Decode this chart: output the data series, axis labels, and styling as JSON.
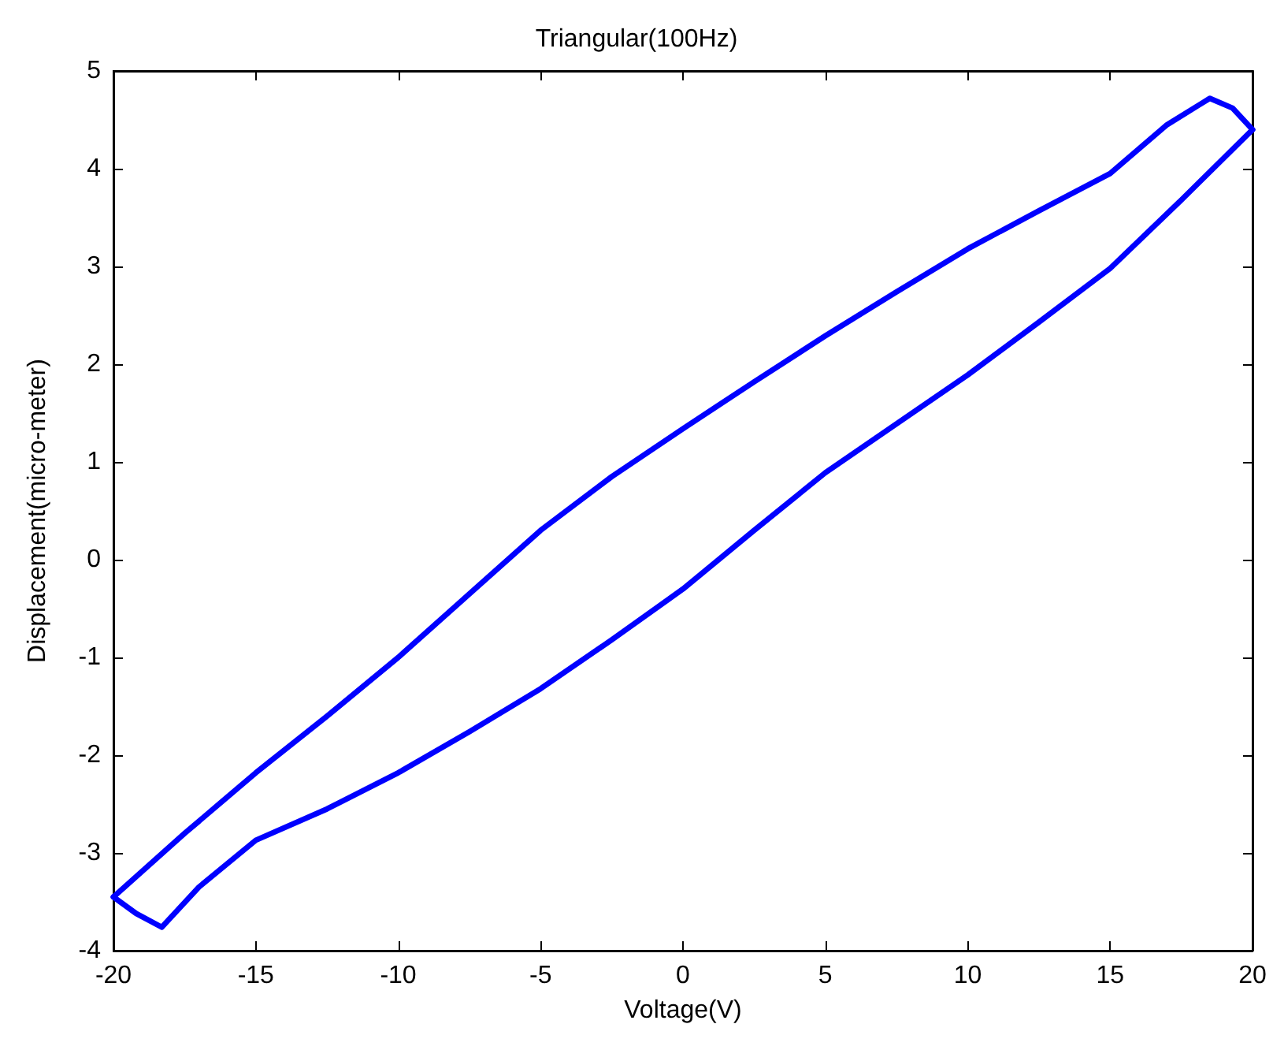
{
  "chart_data": {
    "type": "line",
    "title": "Triangular(100Hz)",
    "xlabel": "Voltage(V)",
    "ylabel": "Displacement(micro-meter)",
    "xlim": [
      -20,
      20
    ],
    "xticks": [
      -20,
      -15,
      -10,
      -5,
      0,
      5,
      10,
      15,
      20
    ],
    "ylim": [
      -4,
      5
    ],
    "yticks": [
      -4,
      -3,
      -2,
      -1,
      0,
      1,
      2,
      3,
      4,
      5
    ],
    "grid": false,
    "marker": "none",
    "line_style": "solid",
    "series": [
      {
        "color": "#0000ff",
        "x": [
          -20,
          -17.5,
          -15,
          -12.5,
          -10,
          -7.5,
          -5,
          -2.5,
          0,
          2.5,
          5,
          7.5,
          10,
          12.5,
          15,
          17,
          18.5,
          19.3,
          20
        ],
        "values": [
          -3.45,
          -2.8,
          -2.18,
          -1.6,
          -1.0,
          -0.35,
          0.3,
          0.85,
          1.34,
          1.82,
          2.29,
          2.74,
          3.18,
          3.57,
          3.95,
          4.45,
          4.72,
          4.62,
          4.4
        ]
      },
      {
        "color": "#0000ff",
        "x": [
          -20,
          -19.2,
          -18.3,
          -17,
          -15,
          -12.5,
          -10,
          -7.5,
          -5,
          -2.5,
          0,
          2.5,
          5,
          7.5,
          10,
          12.5,
          15,
          17.5,
          20
        ],
        "values": [
          -3.45,
          -3.62,
          -3.76,
          -3.35,
          -2.87,
          -2.55,
          -2.18,
          -1.76,
          -1.32,
          -0.82,
          -0.3,
          0.3,
          0.89,
          1.39,
          1.89,
          2.43,
          2.98,
          3.68,
          4.4
        ]
      }
    ]
  }
}
